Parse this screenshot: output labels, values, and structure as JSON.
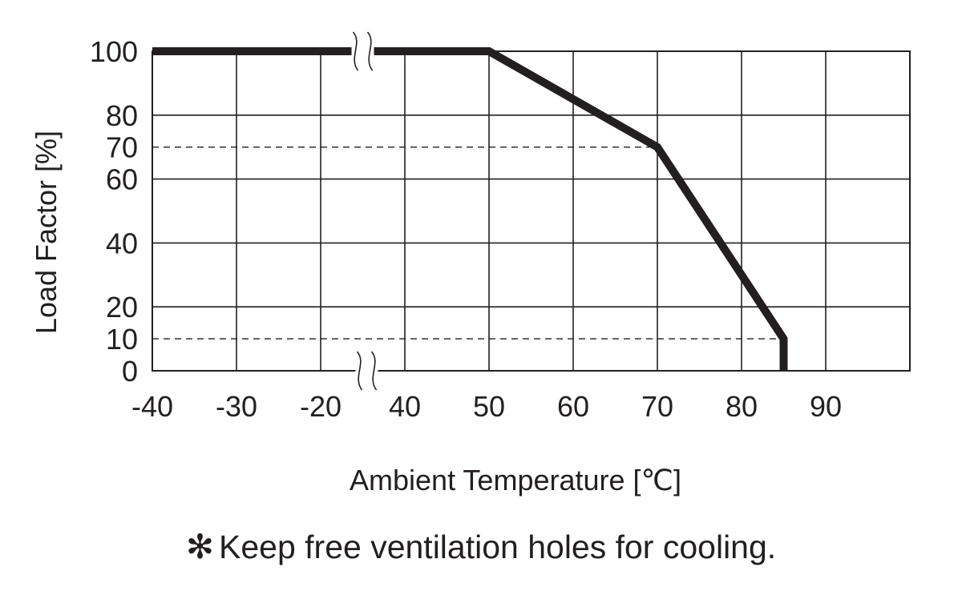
{
  "chart_data": {
    "type": "line",
    "title": "",
    "xlabel": "Ambient Temperature [℃]",
    "ylabel": "Load Factor [%]",
    "x_ticks": [
      "-40",
      "-30",
      "-20",
      "40",
      "50",
      "60",
      "70",
      "80",
      "90"
    ],
    "y_ticks": [
      "0",
      "10",
      "20",
      "40",
      "60",
      "70",
      "80",
      "100"
    ],
    "x_axis_break": "between -20 and 40",
    "ylim": [
      0,
      100
    ],
    "grid": true,
    "reference_lines": [
      {
        "orientation": "horizontal",
        "y": 70,
        "x_from": -40,
        "x_to": 70,
        "style": "dashed"
      },
      {
        "orientation": "horizontal",
        "y": 10,
        "x_from": -40,
        "x_to": 85,
        "style": "dashed"
      }
    ],
    "series": [
      {
        "x": [
          -40,
          50,
          70,
          85,
          85
        ],
        "y": [
          100,
          100,
          70,
          10,
          0
        ]
      }
    ]
  },
  "note": {
    "symbol": "✻",
    "text": "Keep free ventilation holes for cooling."
  },
  "colors": {
    "ink": "#231f20",
    "background": "#ffffff"
  }
}
